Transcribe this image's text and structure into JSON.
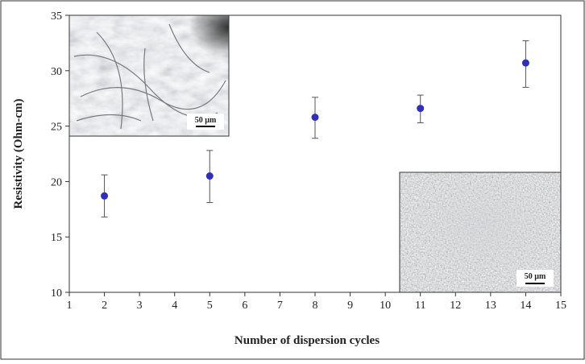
{
  "chart_data": {
    "type": "scatter",
    "title": "",
    "xlabel": "Number of dispersion cycles",
    "ylabel": "Resistivity (Ohm-cm)",
    "xlim": [
      1,
      15
    ],
    "ylim": [
      10,
      35
    ],
    "xticks": [
      1,
      2,
      3,
      4,
      5,
      6,
      7,
      8,
      9,
      10,
      11,
      12,
      13,
      14,
      15
    ],
    "yticks": [
      10,
      15,
      20,
      25,
      30,
      35
    ],
    "grid": false,
    "legend": "none",
    "series": [
      {
        "x": [
          2,
          5,
          8,
          11,
          14
        ],
        "y": [
          18.7,
          20.5,
          25.8,
          26.6,
          30.7
        ],
        "error_low": [
          1.9,
          2.4,
          1.9,
          1.3,
          2.2
        ],
        "error_high": [
          1.9,
          2.3,
          1.8,
          1.2,
          2.0
        ],
        "color": "#2f2fb8"
      }
    ],
    "insets": [
      {
        "name": "inset-top-left",
        "scale_label": "50 µm",
        "texture": "fibrous"
      },
      {
        "name": "inset-bottom-right",
        "scale_label": "50 µm",
        "texture": "dispersed"
      }
    ]
  },
  "colors": {
    "frame": "#333333",
    "marker": "#2f2fb8",
    "error_bar": "#555555"
  }
}
